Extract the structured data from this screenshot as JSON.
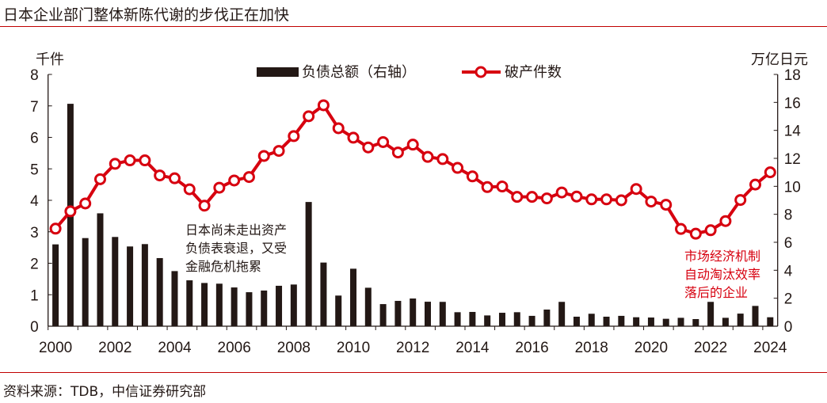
{
  "title": "日本企业部门整体新陈代谢的步伐正在加快",
  "source": "资料来源：TDB，中信证券研究部",
  "chart_data": {
    "type": "bar+line",
    "title": "日本企业部门整体新陈代谢的步伐正在加快",
    "left_axis": {
      "label": "千件",
      "range": [
        0,
        8
      ],
      "ticks": [
        0,
        1,
        2,
        3,
        4,
        5,
        6,
        7,
        8
      ]
    },
    "right_axis": {
      "label": "万亿日元",
      "range": [
        0,
        18
      ],
      "ticks": [
        0,
        2,
        4,
        6,
        8,
        10,
        12,
        14,
        16,
        18
      ]
    },
    "x_tick_labels": [
      "2000",
      "2002",
      "2004",
      "2006",
      "2008",
      "2010",
      "2012",
      "2014",
      "2016",
      "2018",
      "2020",
      "2022",
      "2024"
    ],
    "x": [
      2000,
      2000.5,
      2001,
      2001.5,
      2002,
      2002.5,
      2003,
      2003.5,
      2004,
      2004.5,
      2005,
      2005.5,
      2006,
      2006.5,
      2007,
      2007.5,
      2008,
      2008.5,
      2009,
      2009.5,
      2010,
      2010.5,
      2011,
      2011.5,
      2012,
      2012.5,
      2013,
      2013.5,
      2014,
      2014.5,
      2015,
      2015.5,
      2016,
      2016.5,
      2017,
      2017.5,
      2018,
      2018.5,
      2019,
      2019.5,
      2020,
      2020.5,
      2021,
      2021.5,
      2022,
      2022.5,
      2023,
      2023.5,
      2024
    ],
    "legend_position": "top-center",
    "grid": false,
    "series": [
      {
        "name": "负债总额（右轴）",
        "type": "bar",
        "axis": "right",
        "color": "#231815",
        "values": [
          5.85,
          15.9,
          6.3,
          8.07,
          6.38,
          5.7,
          5.87,
          4.87,
          3.94,
          3.28,
          3.09,
          3.04,
          2.77,
          2.43,
          2.55,
          2.89,
          2.98,
          8.88,
          4.55,
          2.19,
          4.11,
          2.75,
          1.58,
          1.81,
          1.98,
          1.75,
          1.74,
          1.0,
          1.02,
          0.77,
          0.96,
          1.0,
          0.74,
          1.19,
          1.74,
          0.68,
          0.89,
          0.68,
          0.74,
          0.64,
          0.62,
          0.53,
          0.6,
          0.51,
          1.74,
          0.6,
          0.9,
          1.45,
          0.64
        ]
      },
      {
        "name": "破产件数",
        "type": "line",
        "axis": "left",
        "color": "#d7000f",
        "values": [
          3.1,
          3.65,
          3.9,
          4.67,
          5.16,
          5.27,
          5.27,
          4.79,
          4.7,
          4.35,
          3.83,
          4.4,
          4.63,
          4.74,
          5.41,
          5.57,
          6.04,
          6.67,
          7.02,
          6.29,
          5.99,
          5.68,
          5.85,
          5.52,
          5.77,
          5.38,
          5.31,
          5.03,
          4.76,
          4.42,
          4.44,
          4.11,
          4.11,
          4.06,
          4.25,
          4.12,
          4.03,
          4.03,
          4.0,
          4.36,
          3.96,
          3.86,
          3.09,
          2.94,
          3.05,
          3.34,
          4.01,
          4.5,
          4.89
        ]
      }
    ],
    "annotations": [
      {
        "lines": [
          "日本尚未走出资产",
          "负债表衰退，又受",
          "金融危机拖累"
        ],
        "color": "#231815"
      },
      {
        "lines": [
          "市场经济机制",
          "自动淘汰效率",
          "落后的企业"
        ],
        "color": "#d7000f"
      }
    ]
  }
}
